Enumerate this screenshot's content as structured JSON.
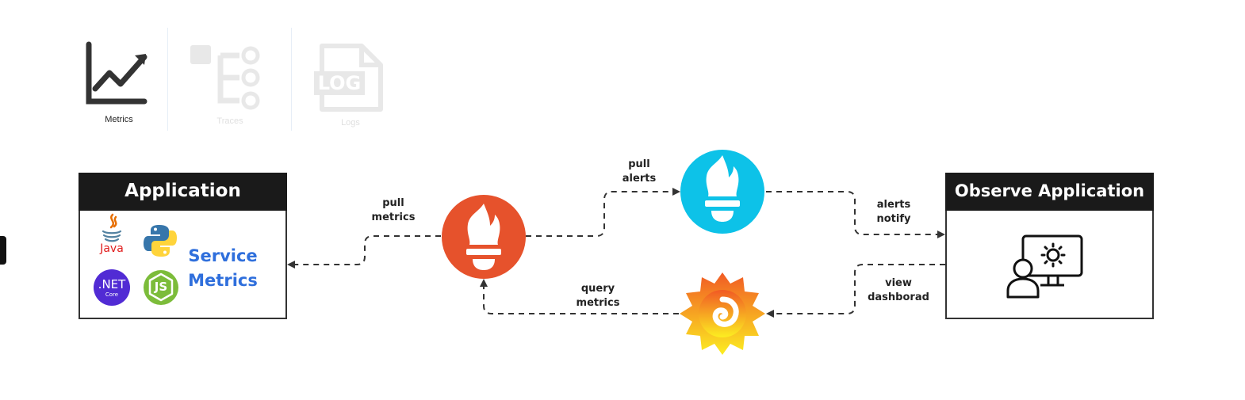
{
  "tabs": [
    {
      "label": "Metrics",
      "icon": "line-chart-icon",
      "active": true
    },
    {
      "label": "Traces",
      "icon": "trace-tree-icon",
      "active": false
    },
    {
      "label": "Logs",
      "icon": "log-file-icon",
      "active": false
    }
  ],
  "log_icon_text": "LOG",
  "application": {
    "title": "Application",
    "languages": [
      {
        "name": "Java",
        "icon": "java-icon"
      },
      {
        "name": "Python",
        "icon": "python-icon"
      },
      {
        "name": ".NET",
        "sub": "Core",
        "icon": "dotnet-core-icon"
      },
      {
        "name": "JS",
        "icon": "nodejs-icon"
      }
    ],
    "service_line1": "Service",
    "service_line2": "Metrics"
  },
  "observe": {
    "title": "Observe Application",
    "icon": "user-monitor-gear-icon"
  },
  "nodes": {
    "prometheus": {
      "icon": "prometheus-icon",
      "color": "#e6522c"
    },
    "alertmanager": {
      "icon": "alertmanager-icon",
      "color": "#0dc2e8"
    },
    "grafana": {
      "icon": "grafana-icon",
      "color": "#f7931e"
    }
  },
  "edges": {
    "pull_metrics": {
      "line1": "pull",
      "line2": "metrics"
    },
    "pull_alerts": {
      "line1": "pull",
      "line2": "alerts"
    },
    "alerts_notify": {
      "line1": "alerts",
      "line2": "notify"
    },
    "query_metrics": {
      "line1": "query",
      "line2": "metrics"
    },
    "view_dashboard": {
      "line1": "view",
      "line2": "dashborad"
    }
  }
}
